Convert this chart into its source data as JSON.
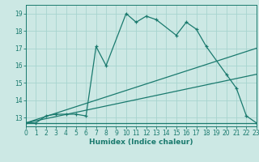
{
  "xlabel": "Humidex (Indice chaleur)",
  "background_color": "#cce8e4",
  "grid_color": "#a8d4cf",
  "line_color": "#1a7a6e",
  "xlim": [
    0,
    23
  ],
  "ylim": [
    12.5,
    19.5
  ],
  "xticks": [
    0,
    1,
    2,
    3,
    4,
    5,
    6,
    7,
    8,
    9,
    10,
    11,
    12,
    13,
    14,
    15,
    16,
    17,
    18,
    19,
    20,
    21,
    22,
    23
  ],
  "yticks": [
    13,
    14,
    15,
    16,
    17,
    18,
    19
  ],
  "series": [
    {
      "x": [
        0,
        1,
        2,
        3,
        4,
        5,
        6,
        7,
        8,
        10,
        11,
        12,
        13,
        15,
        16,
        17,
        18,
        20,
        21,
        22,
        23
      ],
      "y": [
        12.7,
        12.7,
        13.1,
        13.2,
        13.2,
        13.2,
        13.1,
        17.1,
        16.0,
        19.0,
        18.5,
        18.85,
        18.65,
        17.75,
        18.5,
        18.1,
        17.1,
        15.5,
        14.7,
        13.1,
        12.7
      ]
    },
    {
      "x": [
        0,
        23
      ],
      "y": [
        12.7,
        17.0
      ]
    },
    {
      "x": [
        0,
        23
      ],
      "y": [
        12.7,
        15.5
      ]
    },
    {
      "x": [
        0,
        23
      ],
      "y": [
        12.7,
        12.7
      ]
    }
  ]
}
